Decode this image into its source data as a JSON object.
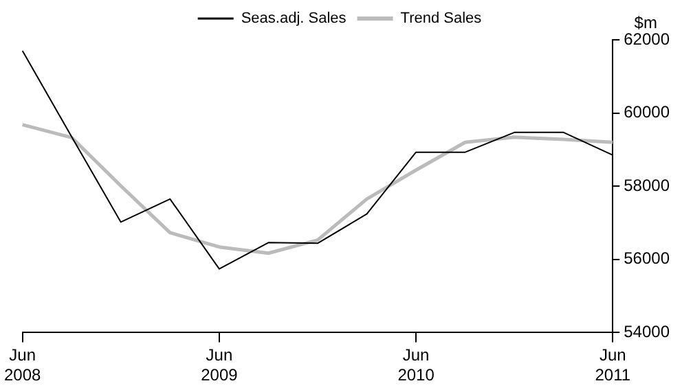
{
  "chart_data": {
    "type": "line",
    "ylabel": "$m",
    "categories": [
      "Jun 2008",
      null,
      null,
      null,
      "Jun 2009",
      null,
      null,
      null,
      "Jun 2010",
      null,
      null,
      null,
      "Jun 2011"
    ],
    "series": [
      {
        "name": "Seas.adj. Sales",
        "color": "#000000",
        "values": [
          61700,
          59350,
          57020,
          57650,
          55740,
          56460,
          56440,
          57240,
          58930,
          58930,
          59470,
          59470,
          58850
        ]
      },
      {
        "name": "Trend Sales",
        "color": "#bbbbbb",
        "values": [
          59680,
          59330,
          58010,
          56730,
          56340,
          56170,
          56530,
          57650,
          58440,
          59200,
          59340,
          59280,
          59200
        ]
      }
    ],
    "ylim": [
      54000,
      62000
    ],
    "yticks": [
      54000,
      56000,
      58000,
      60000,
      62000
    ],
    "grid": false,
    "legend": "top",
    "marker": "none",
    "line_style": "solid"
  }
}
